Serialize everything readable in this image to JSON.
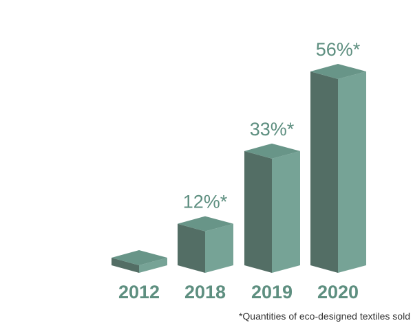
{
  "colors": {
    "front": "#536e65",
    "side": "#76a396",
    "top": "#689588",
    "label": "#5e8f80",
    "footnote": "#333333"
  },
  "chart_data": {
    "type": "bar",
    "style": "3d",
    "categories": [
      "2012",
      "2018",
      "2019",
      "2020"
    ],
    "values": [
      null,
      12,
      33,
      56
    ],
    "value_labels": [
      "",
      "12%*",
      "33%*",
      "56%*"
    ],
    "title": "",
    "xlabel": "",
    "ylabel": "",
    "ylim": [
      0,
      56
    ],
    "grid": false,
    "legend": "none",
    "footnote": "*Quantities of eco-designed textiles sold"
  }
}
